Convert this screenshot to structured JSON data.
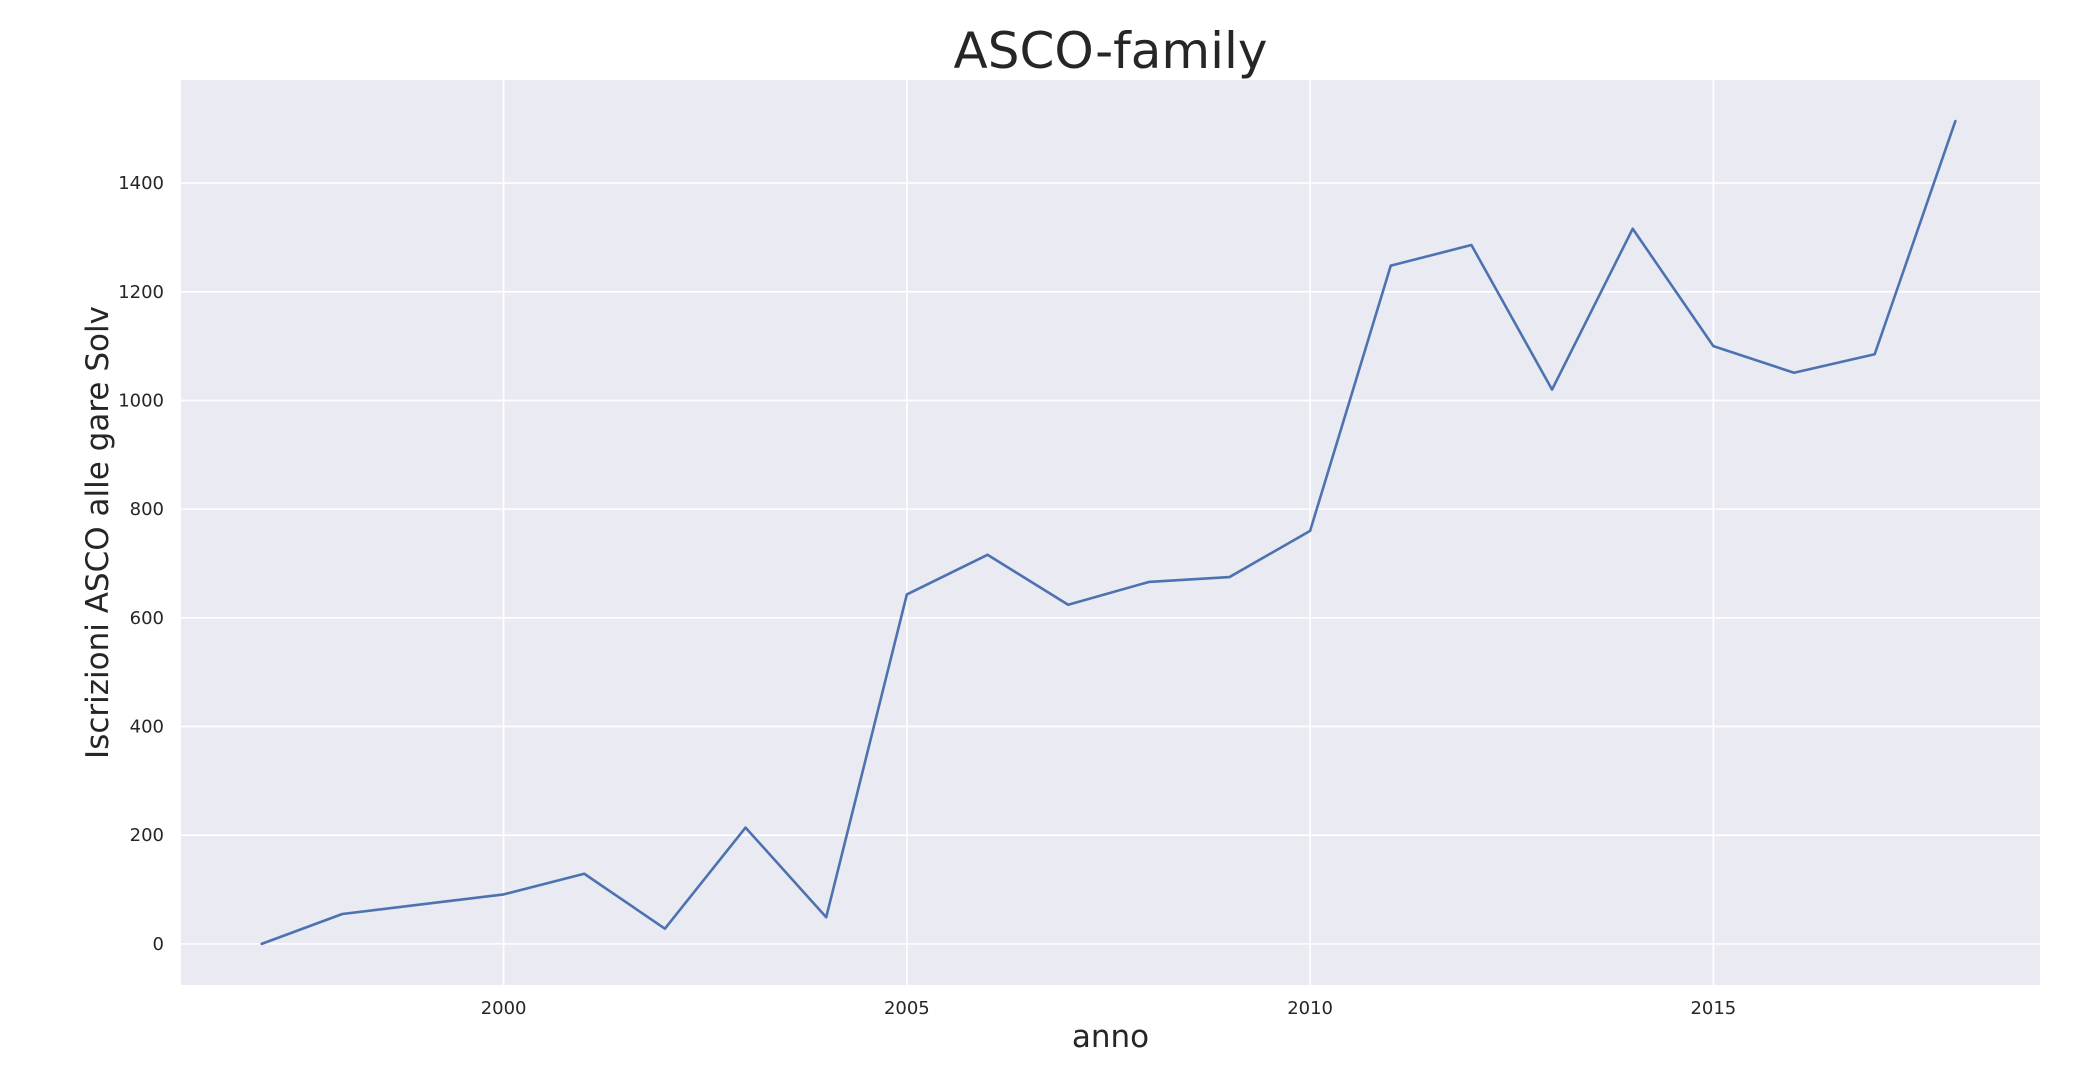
{
  "chart_data": {
    "type": "line",
    "title": "ASCO-family",
    "xlabel": "anno",
    "ylabel": "Iscrizioni ASCO alle gare Solv",
    "x": [
      1997,
      1998,
      1999,
      2000,
      2001,
      2002,
      2003,
      2004,
      2005,
      2006,
      2007,
      2008,
      2009,
      2010,
      2011,
      2012,
      2013,
      2014,
      2015,
      2016,
      2017,
      2018
    ],
    "series": [
      {
        "values": [
          0,
          55,
          73,
          91,
          129,
          28,
          214,
          49,
          643,
          716,
          624,
          666,
          675,
          760,
          1248,
          1286,
          1020,
          1316,
          1100,
          1051,
          1085,
          1514
        ]
      }
    ],
    "xlim": [
      1996,
      2019.05
    ],
    "ylim": [
      -75.7,
      1589.7
    ],
    "xticks": [
      2000,
      2005,
      2010,
      2015
    ],
    "yticks": [
      0,
      200,
      400,
      600,
      800,
      1000,
      1200,
      1400
    ],
    "grid": true,
    "colors": {
      "background": "#eaeaf2",
      "grid": "#ffffff",
      "line": "#4c72b0"
    }
  }
}
